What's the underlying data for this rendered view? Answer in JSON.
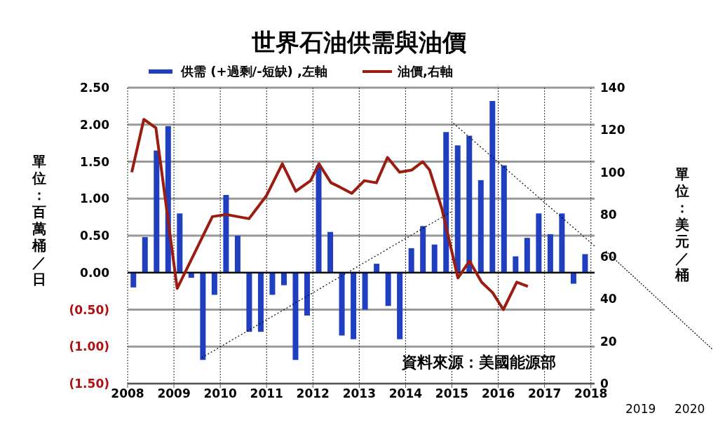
{
  "chart_data": {
    "type": "bar",
    "title": "世界石油供需與油價",
    "ylabel": "單位：百萬桶／日",
    "y2label": "單位：美元／桶",
    "annotations": [
      "資料來源：美國能源部",
      "2019",
      "2020"
    ],
    "series": [
      {
        "name": "供需 (+過剩/-短缺) ,左軸",
        "color": "#1f3fbf",
        "x": [
          2008.125,
          2008.375,
          2008.625,
          2008.875,
          2009.125,
          2009.375,
          2009.625,
          2009.875,
          2010.125,
          2010.375,
          2010.625,
          2010.875,
          2011.125,
          2011.375,
          2011.625,
          2011.875,
          2012.125,
          2012.375,
          2012.625,
          2012.875,
          2013.125,
          2013.375,
          2013.625,
          2013.875,
          2014.125,
          2014.375,
          2014.625,
          2014.875,
          2015.125,
          2015.375,
          2015.625,
          2015.875,
          2016.125,
          2016.375,
          2016.625,
          2016.875,
          2017.125,
          2017.375,
          2017.625,
          2017.875
        ],
        "values": [
          -0.2,
          0.48,
          1.65,
          1.98,
          0.8,
          -0.07,
          -1.18,
          -0.3,
          1.05,
          0.5,
          -0.8,
          -0.8,
          -0.3,
          -0.17,
          -1.18,
          -0.58,
          1.45,
          0.55,
          -0.85,
          -0.9,
          -0.5,
          0.12,
          -0.45,
          -0.9,
          0.33,
          0.63,
          0.38,
          1.9,
          1.72,
          1.85,
          1.25,
          2.32,
          1.45,
          0.22,
          0.47,
          0.8,
          0.52,
          0.8,
          -0.15,
          0.25
        ]
      },
      {
        "name": "油價,右軸",
        "type": "line",
        "axis": "y2",
        "color": "#9b1c10",
        "x": [
          2008.09,
          2008.35,
          2008.61,
          2009.07,
          2009.83,
          2010.13,
          2010.62,
          2011.0,
          2011.34,
          2011.63,
          2011.95,
          2012.13,
          2012.39,
          2012.58,
          2012.84,
          2013.11,
          2013.37,
          2013.61,
          2013.87,
          2014.13,
          2014.37,
          2014.52,
          2014.78,
          2015.13,
          2015.38,
          2015.64,
          2015.88,
          2016.11,
          2016.4,
          2016.64
        ],
        "values": [
          100,
          125,
          121,
          45,
          79,
          80,
          78,
          89,
          104,
          91,
          96,
          104,
          95,
          93,
          90,
          96,
          95,
          107,
          100,
          101,
          105,
          101,
          83,
          50,
          58,
          48,
          43,
          35,
          48,
          46
        ]
      },
      {
        "type": "line",
        "color": "#000000",
        "line_style": "dotted",
        "x": [
          2009.6,
          2014.98
        ],
        "values": [
          -1.15,
          0.82
        ]
      },
      {
        "type": "line",
        "color": "#000000",
        "line_style": "dotted",
        "x": [
          2015.03,
          2018.08
        ],
        "values": [
          2.02,
          0.36
        ]
      }
    ],
    "xlim": [
      2008,
      2018.08
    ],
    "xticks": [
      2008,
      2009,
      2010,
      2011,
      2012,
      2013,
      2014,
      2015,
      2016,
      2017,
      2018
    ],
    "ylim": [
      -1.5,
      2.5
    ],
    "yticks": [
      {
        "value": -1.5,
        "label": "(1.50)"
      },
      {
        "value": -1,
        "label": "(1.00)"
      },
      {
        "value": -0.5,
        "label": "(0.50)"
      },
      {
        "value": 0,
        "label": "0.00"
      },
      {
        "value": 0.5,
        "label": "0.50"
      },
      {
        "value": 1,
        "label": "1.00"
      },
      {
        "value": 1.5,
        "label": "1.50"
      },
      {
        "value": 2,
        "label": "2.00"
      },
      {
        "value": 2.5,
        "label": "2.50"
      }
    ],
    "y2lim": [
      0,
      140
    ],
    "y2ticks": [
      0,
      20,
      40,
      60,
      80,
      100,
      120,
      140
    ],
    "grid": true,
    "legend": "top",
    "marker": "none",
    "line_style": "solid"
  }
}
